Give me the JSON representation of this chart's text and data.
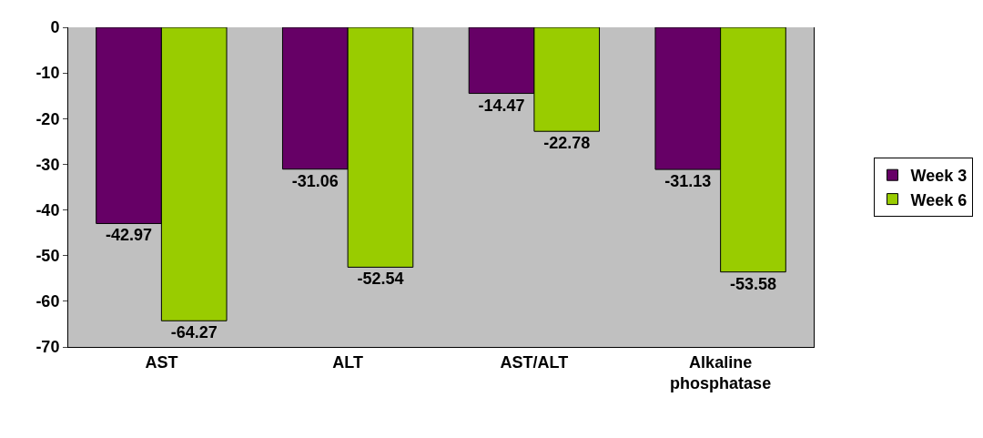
{
  "chart_data": {
    "type": "bar",
    "categories": [
      "AST",
      "ALT",
      "AST/ALT",
      "Alkaline phosphatase"
    ],
    "series": [
      {
        "name": "Week 3",
        "color": "#660066",
        "values": [
          -42.97,
          -31.06,
          -14.47,
          -31.13
        ]
      },
      {
        "name": "Week 6",
        "color": "#99cc00",
        "values": [
          -64.27,
          -52.54,
          -22.78,
          -53.58
        ]
      }
    ],
    "ylim": [
      -70,
      0
    ],
    "yticks": [
      0,
      -10,
      -20,
      -30,
      -40,
      -50,
      -60,
      -70
    ],
    "data_labels": true,
    "legend": "right",
    "grid": false
  }
}
